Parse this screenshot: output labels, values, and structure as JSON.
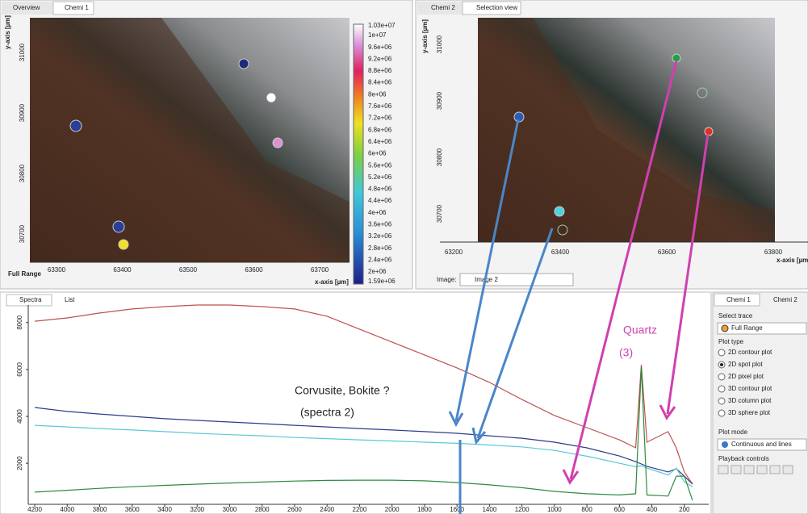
{
  "left_panel": {
    "tabs": [
      "Overview",
      "Chemi 1"
    ],
    "y_axis_label": "y-axis [µm]",
    "yticks": [
      "31000",
      "30900",
      "30800",
      "30700"
    ],
    "xticks": [
      "63300",
      "63400",
      "63500",
      "63600",
      "63700"
    ],
    "trace_label": "Full Range",
    "x_axis_label": "x-axis [µm]",
    "colorbar_labels": [
      "1.03e+07",
      "1e+07",
      "9.6e+06",
      "9.2e+06",
      "8.8e+06",
      "8.4e+06",
      "8e+06",
      "7.6e+06",
      "7.2e+06",
      "6.8e+06",
      "6.4e+06",
      "6e+06",
      "5.6e+06",
      "5.2e+06",
      "4.8e+06",
      "4.4e+06",
      "4e+06",
      "3.6e+06",
      "3.2e+06",
      "2.8e+06",
      "2.4e+06",
      "2e+06",
      "1.59e+06"
    ]
  },
  "right_panel": {
    "tabs": [
      "Chemi 2",
      "Selection view"
    ],
    "y_axis_label": "y-axis [µm]",
    "yticks": [
      "31000",
      "30900",
      "30800",
      "30700"
    ],
    "xticks": [
      "63200",
      "63400",
      "63600",
      "63800"
    ],
    "x_axis_label": "x-axis [µm]",
    "image_label": "Image:",
    "image_value": "Image 2"
  },
  "spectra_panel": {
    "tabs": [
      "Spectra",
      "List"
    ],
    "chart": {
      "type": "line",
      "x": [
        4200,
        4000,
        3800,
        3600,
        3400,
        3200,
        3000,
        2800,
        2600,
        2400,
        2200,
        2000,
        1800,
        1600,
        1400,
        1200,
        1000,
        800,
        600,
        500,
        465,
        430,
        300,
        250,
        200,
        150
      ],
      "xlim": [
        4240,
        50
      ],
      "ylim": [
        250,
        8750
      ],
      "xticks": [
        4200,
        4000,
        3800,
        3600,
        3400,
        3200,
        3000,
        2800,
        2600,
        2400,
        2200,
        2000,
        1800,
        1600,
        1400,
        1200,
        1000,
        800,
        600,
        400,
        200
      ],
      "yticks": [
        2000,
        4000,
        6000,
        8000
      ],
      "series": [
        {
          "color": "#c0504d",
          "values": [
            8060,
            8200,
            8410,
            8580,
            8680,
            8750,
            8750,
            8680,
            8580,
            8270,
            7720,
            7170,
            6620,
            6070,
            5450,
            4720,
            4040,
            3520,
            3000,
            2660,
            6200,
            2900,
            3350,
            2660,
            1630,
            1110
          ]
        },
        {
          "color": "#2e3a8c",
          "values": [
            4380,
            4210,
            4100,
            4000,
            3900,
            3830,
            3760,
            3690,
            3620,
            3550,
            3480,
            3420,
            3350,
            3280,
            3170,
            3070,
            2900,
            2660,
            2310,
            2070,
            1970,
            1870,
            1630,
            1770,
            1450,
            1110
          ]
        },
        {
          "color": "#5bc8d8",
          "values": [
            3620,
            3550,
            3480,
            3420,
            3350,
            3280,
            3220,
            3170,
            3100,
            3050,
            3000,
            2950,
            2900,
            2850,
            2780,
            2700,
            2550,
            2300,
            2000,
            1850,
            1900,
            1800,
            1500,
            1800,
            1200,
            1000
          ]
        },
        {
          "color": "#2e8b3e",
          "values": [
            770,
            850,
            930,
            1000,
            1060,
            1110,
            1160,
            1200,
            1240,
            1270,
            1280,
            1280,
            1250,
            1180,
            1080,
            960,
            800,
            700,
            650,
            700,
            6100,
            650,
            600,
            1450,
            1450,
            420
          ]
        }
      ]
    },
    "annotations": [
      "Corvusite, Bokite ?",
      "(spectra 2)",
      "Quartz",
      "(3)"
    ]
  },
  "sidebar": {
    "tabs": [
      "Chemi 1",
      "Chemi 2"
    ],
    "select_trace_label": "Select trace",
    "selected_trace": "Full Range",
    "plot_type_label": "Plot type",
    "plot_types": [
      "2D contour plot",
      "2D spot plot",
      "2D pixel plot",
      "3D contour plot",
      "3D column plot",
      "3D sphere plot"
    ],
    "selected_plot_type": 1,
    "plot_mode_label": "Plot mode",
    "plot_mode": "Continuous and lines",
    "playback_label": "Playback controls"
  }
}
